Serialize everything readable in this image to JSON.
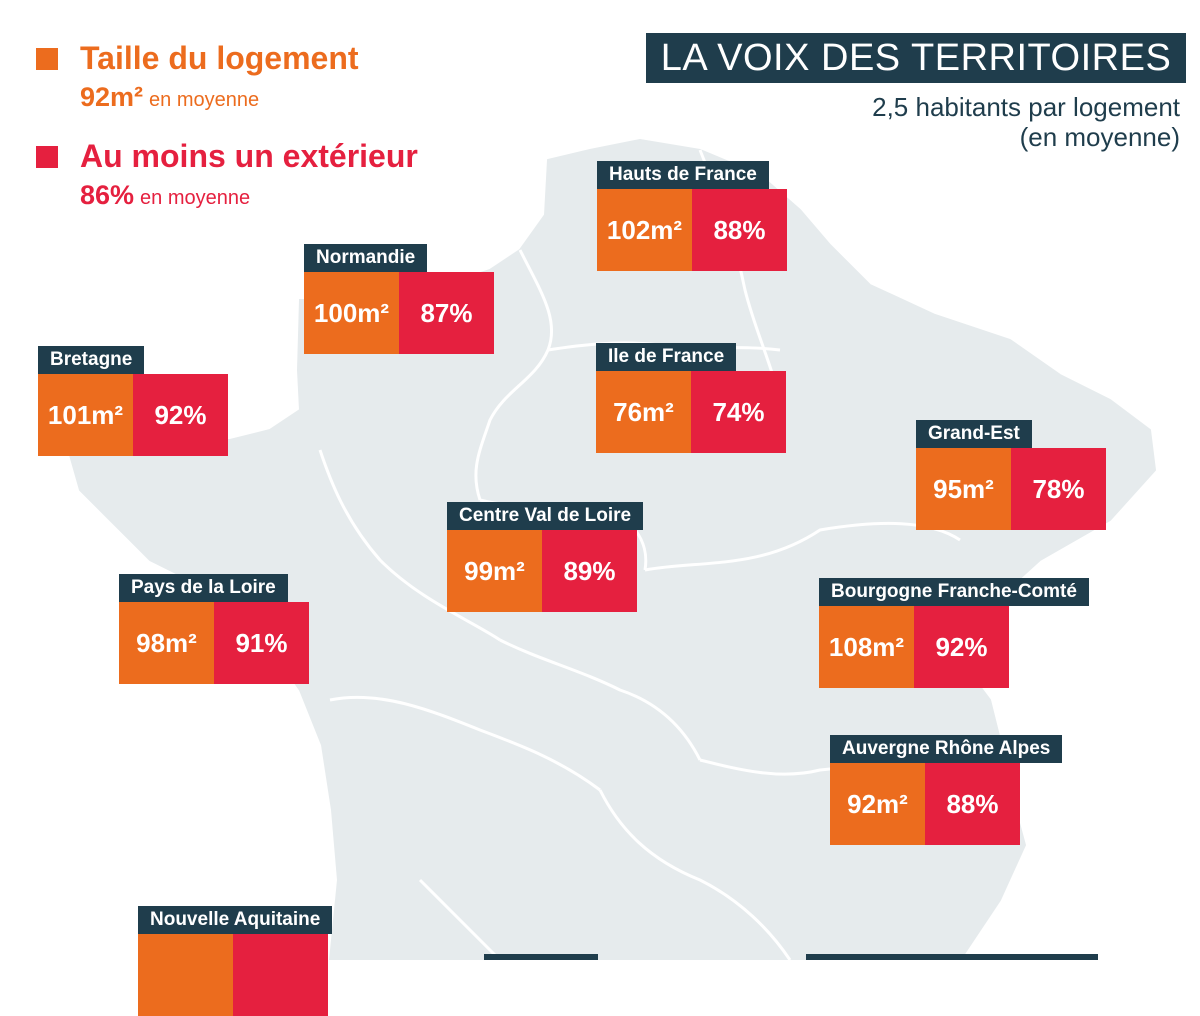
{
  "colors": {
    "size": "#ec6c1e",
    "exterior": "#e5203f",
    "navy": "#1f3d4c",
    "map_fill": "#e6ebed",
    "map_border": "#ffffff"
  },
  "legend": {
    "size": {
      "title": "Taille du logement",
      "value": "92m²",
      "suffix": "en moyenne"
    },
    "exterior": {
      "title": "Au moins un extérieur",
      "value": "86%",
      "suffix": "en moyenne"
    }
  },
  "header": {
    "title": "LA VOIX DES TERRITOIRES",
    "subtitle_line1": "2,5 habitants par logement",
    "subtitle_line2": "(en moyenne)"
  },
  "regions": [
    {
      "name": "Hauts de France",
      "size": "102m²",
      "exterior": "88%"
    },
    {
      "name": "Normandie",
      "size": "100m²",
      "exterior": "87%"
    },
    {
      "name": "Bretagne",
      "size": "101m²",
      "exterior": "92%"
    },
    {
      "name": "Ile de France",
      "size": "76m²",
      "exterior": "74%"
    },
    {
      "name": "Grand-Est",
      "size": "95m²",
      "exterior": "78%"
    },
    {
      "name": "Centre Val de Loire",
      "size": "99m²",
      "exterior": "89%"
    },
    {
      "name": "Pays de la Loire",
      "size": "98m²",
      "exterior": "91%"
    },
    {
      "name": "Bourgogne Franche-Comté",
      "size": "108m²",
      "exterior": "92%"
    },
    {
      "name": "Auvergne Rhône Alpes",
      "size": "92m²",
      "exterior": "88%"
    },
    {
      "name": "Nouvelle Aquitaine",
      "size": "",
      "exterior": ""
    }
  ]
}
